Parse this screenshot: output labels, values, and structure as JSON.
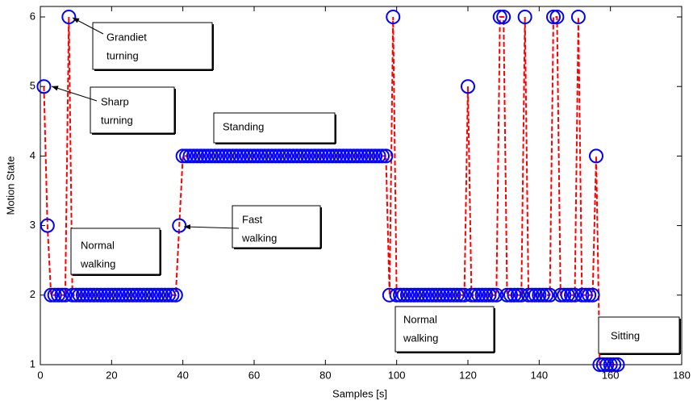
{
  "chart_data": {
    "type": "line",
    "xlabel": "Samples [s]",
    "ylabel": "Motion State",
    "x": [
      1,
      2,
      3,
      4,
      5,
      6,
      7,
      8,
      9,
      10,
      11,
      12,
      13,
      14,
      15,
      16,
      17,
      18,
      19,
      20,
      21,
      22,
      23,
      24,
      25,
      26,
      27,
      28,
      29,
      30,
      31,
      32,
      33,
      34,
      35,
      36,
      37,
      38,
      39,
      40,
      41,
      42,
      43,
      44,
      45,
      46,
      47,
      48,
      49,
      50,
      51,
      52,
      53,
      54,
      55,
      56,
      57,
      58,
      59,
      60,
      61,
      62,
      63,
      64,
      65,
      66,
      67,
      68,
      69,
      70,
      71,
      72,
      73,
      74,
      75,
      76,
      77,
      78,
      79,
      80,
      81,
      82,
      83,
      84,
      85,
      86,
      87,
      88,
      89,
      90,
      91,
      92,
      93,
      94,
      95,
      96,
      97,
      98,
      99,
      100,
      101,
      102,
      103,
      104,
      105,
      106,
      107,
      108,
      109,
      110,
      111,
      112,
      113,
      114,
      115,
      116,
      117,
      118,
      119,
      120,
      121,
      122,
      123,
      124,
      125,
      126,
      127,
      128,
      129,
      130,
      131,
      132,
      133,
      134,
      135,
      136,
      137,
      138,
      139,
      140,
      141,
      142,
      143,
      144,
      145,
      146,
      147,
      148,
      149,
      150,
      151,
      152,
      153,
      154,
      155,
      156,
      157,
      158,
      159,
      160,
      161,
      162
    ],
    "values": [
      5,
      3,
      2,
      2,
      2,
      2,
      2,
      6,
      2,
      2,
      2,
      2,
      2,
      2,
      2,
      2,
      2,
      2,
      2,
      2,
      2,
      2,
      2,
      2,
      2,
      2,
      2,
      2,
      2,
      2,
      2,
      2,
      2,
      2,
      2,
      2,
      2,
      2,
      3,
      4,
      4,
      4,
      4,
      4,
      4,
      4,
      4,
      4,
      4,
      4,
      4,
      4,
      4,
      4,
      4,
      4,
      4,
      4,
      4,
      4,
      4,
      4,
      4,
      4,
      4,
      4,
      4,
      4,
      4,
      4,
      4,
      4,
      4,
      4,
      4,
      4,
      4,
      4,
      4,
      4,
      4,
      4,
      4,
      4,
      4,
      4,
      4,
      4,
      4,
      4,
      4,
      4,
      4,
      4,
      4,
      4,
      4,
      2,
      6,
      2,
      2,
      2,
      2,
      2,
      2,
      2,
      2,
      2,
      2,
      2,
      2,
      2,
      2,
      2,
      2,
      2,
      2,
      2,
      2,
      5,
      2,
      2,
      2,
      2,
      2,
      2,
      2,
      2,
      6,
      6,
      2,
      2,
      2,
      2,
      2,
      6,
      2,
      2,
      2,
      2,
      2,
      2,
      2,
      6,
      6,
      2,
      2,
      2,
      2,
      2,
      6,
      2,
      2,
      2,
      2,
      4,
      1,
      1,
      1,
      1,
      1,
      1
    ],
    "line_color": "#ff0000",
    "marker_color": "#0000ff",
    "xlim": [
      0,
      180
    ],
    "xticks": [
      0,
      20,
      40,
      60,
      80,
      100,
      120,
      140,
      160,
      180
    ],
    "ylim": [
      1,
      6
    ],
    "yticks": [
      1,
      2,
      3,
      4,
      5,
      6
    ],
    "annotations": [
      {
        "lines": [
          "Grandiet",
          "turning"
        ]
      },
      {
        "lines": [
          "Sharp",
          "turning"
        ]
      },
      {
        "lines": [
          "Standing"
        ]
      },
      {
        "lines": [
          "Fast",
          "walking"
        ]
      },
      {
        "lines": [
          "Normal",
          "walking"
        ]
      },
      {
        "lines": [
          "Normal",
          "walking"
        ]
      },
      {
        "lines": [
          "Sitting"
        ]
      }
    ]
  }
}
